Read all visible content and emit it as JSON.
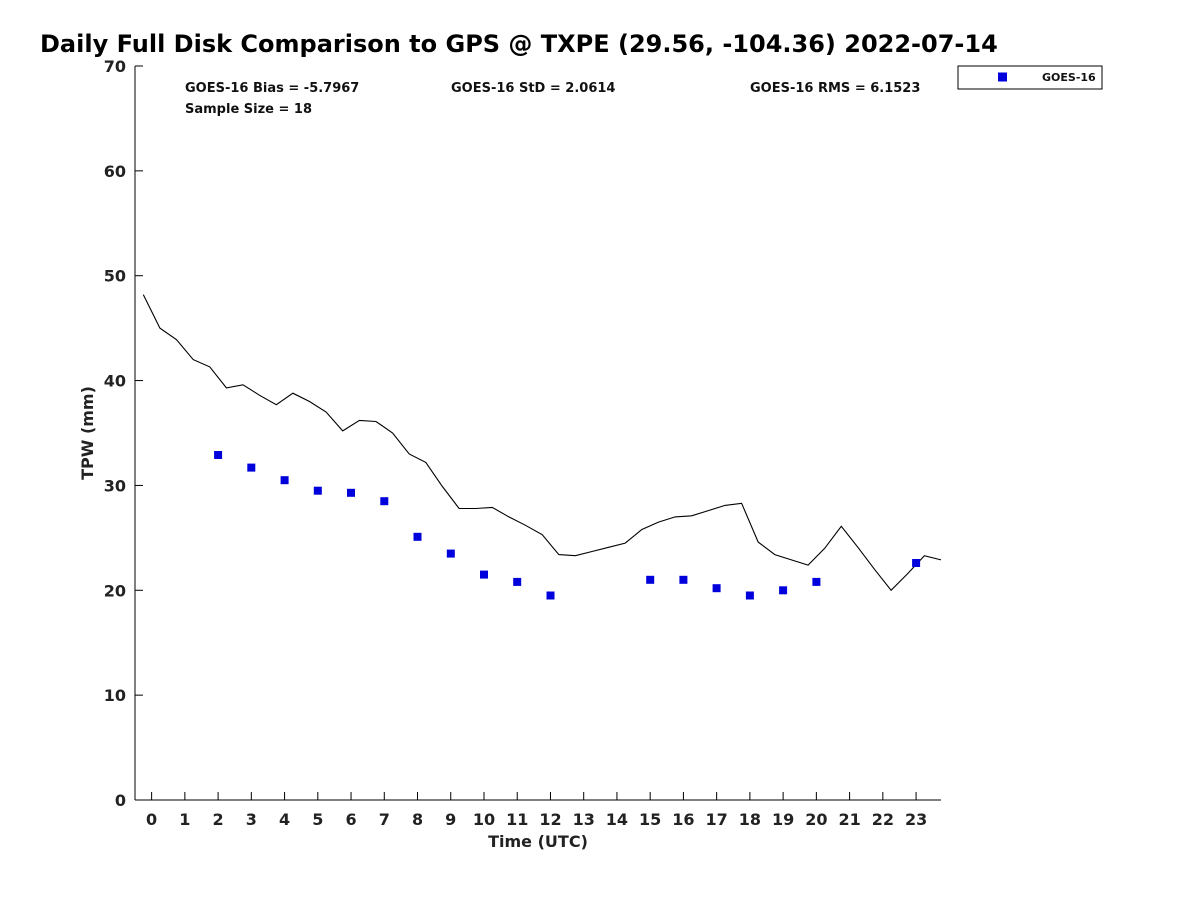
{
  "chart_data": {
    "type": "scatter",
    "title": "Daily Full Disk Comparison to GPS @ TXPE (29.56, -104.36) 2022-07-14",
    "xlabel": "Time (UTC)",
    "ylabel": "TPW (mm)",
    "xlim": [
      -0.5,
      23.75
    ],
    "ylim": [
      0,
      70
    ],
    "xticks": [
      0,
      1,
      2,
      3,
      4,
      5,
      6,
      7,
      8,
      9,
      10,
      11,
      12,
      13,
      14,
      15,
      16,
      17,
      18,
      19,
      20,
      21,
      22,
      23
    ],
    "yticks": [
      0,
      10,
      20,
      30,
      40,
      50,
      60,
      70
    ],
    "grid": false,
    "legend_position": "top-right",
    "stats": {
      "bias": "GOES-16 Bias = -5.7967",
      "std": "GOES-16 StD = 2.0614",
      "rms": "GOES-16 RMS = 6.1523",
      "sample": "Sample Size = 18"
    },
    "series": [
      {
        "name": "GOES-16",
        "kind": "scatter",
        "color": "#0000dd",
        "x": [
          2,
          3,
          4,
          5,
          6,
          7,
          8,
          9,
          10,
          11,
          12,
          15,
          16,
          17,
          18,
          19,
          20,
          23
        ],
        "y": [
          32.9,
          31.7,
          30.5,
          29.5,
          29.3,
          28.5,
          25.1,
          23.5,
          21.5,
          20.8,
          19.5,
          21.0,
          21.0,
          20.2,
          19.5,
          20.0,
          20.8,
          22.6
        ]
      },
      {
        "kind": "line",
        "color": "#000000",
        "x": [
          -0.25,
          0.25,
          0.75,
          1.25,
          1.75,
          2.25,
          2.75,
          3.25,
          3.75,
          4.25,
          4.75,
          5.25,
          5.75,
          6.25,
          6.75,
          7.25,
          7.75,
          8.25,
          8.75,
          9.25,
          9.75,
          10.25,
          10.75,
          11.25,
          11.75,
          12.25,
          12.75,
          13.25,
          13.75,
          14.25,
          14.75,
          15.25,
          15.75,
          16.25,
          16.75,
          17.25,
          17.75,
          18.25,
          18.75,
          19.25,
          19.75,
          20.25,
          20.75,
          21.25,
          21.75,
          22.25,
          22.75,
          23.25,
          23.75
        ],
        "y": [
          48.2,
          45.0,
          43.9,
          42.0,
          41.3,
          39.3,
          39.6,
          38.6,
          37.7,
          38.8,
          38.0,
          37.0,
          35.2,
          36.2,
          36.1,
          35.0,
          33.0,
          32.2,
          29.9,
          27.8,
          27.8,
          27.9,
          27.0,
          26.2,
          25.3,
          23.4,
          23.3,
          23.7,
          24.1,
          24.5,
          25.8,
          26.5,
          27.0,
          27.1,
          27.6,
          28.1,
          28.3,
          24.6,
          23.4,
          22.9,
          22.4,
          24.0,
          26.1,
          24.1,
          22.0,
          20.0,
          21.6,
          23.3,
          22.9
        ]
      }
    ]
  }
}
